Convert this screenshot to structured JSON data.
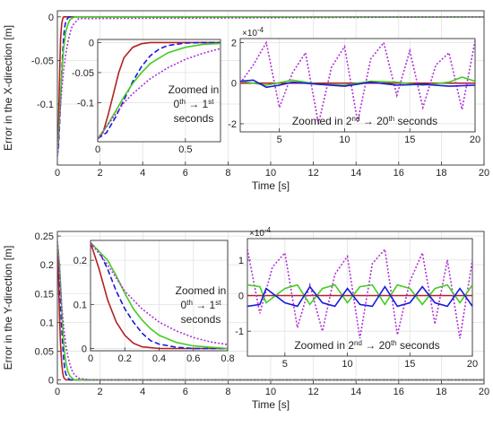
{
  "chart_data": [
    {
      "type": "line",
      "id": "x-main",
      "xlabel": "Time [s]",
      "ylabel": "Error in the X-direction [m]",
      "xlim": [
        0,
        20
      ],
      "ylim": [
        -0.17,
        0.007
      ],
      "xticks": [
        0,
        2,
        4,
        6,
        8,
        10,
        12,
        14,
        16,
        18,
        20
      ],
      "yticks": [
        0,
        -0.05,
        -0.1
      ],
      "ytick_labels": [
        "0",
        "-0.05",
        "-0.1"
      ],
      "grid": true,
      "series": [
        {
          "color": "#b22222",
          "dash": "solid",
          "x": [
            0,
            0.03,
            0.06,
            0.09,
            0.12,
            0.15,
            0.2,
            0.25,
            0.3,
            0.4,
            0.6,
            20
          ],
          "y": [
            -0.16,
            -0.15,
            -0.12,
            -0.085,
            -0.05,
            -0.025,
            -0.008,
            -0.002,
            0,
            0,
            0,
            0
          ]
        },
        {
          "color": "#1a1adb",
          "dash": "6,3",
          "x": [
            0,
            0.05,
            0.1,
            0.15,
            0.2,
            0.25,
            0.3,
            0.35,
            0.4,
            0.5,
            0.6,
            20
          ],
          "y": [
            -0.16,
            -0.15,
            -0.125,
            -0.095,
            -0.065,
            -0.04,
            -0.022,
            -0.011,
            -0.005,
            -0.001,
            0,
            0
          ]
        },
        {
          "color": "#44cc22",
          "dash": "solid",
          "x": [
            0,
            0.05,
            0.1,
            0.15,
            0.2,
            0.25,
            0.3,
            0.4,
            0.5,
            0.6,
            0.8,
            20
          ],
          "y": [
            -0.16,
            -0.14,
            -0.115,
            -0.09,
            -0.068,
            -0.05,
            -0.035,
            -0.017,
            -0.008,
            -0.003,
            0,
            0
          ]
        },
        {
          "color": "#b030d8",
          "dash": "2,2",
          "x": [
            0,
            0.05,
            0.1,
            0.15,
            0.2,
            0.3,
            0.4,
            0.5,
            0.6,
            0.7,
            1.0,
            20
          ],
          "y": [
            -0.16,
            -0.14,
            -0.12,
            -0.1,
            -0.085,
            -0.06,
            -0.042,
            -0.028,
            -0.018,
            -0.01,
            -0.002,
            0
          ]
        }
      ],
      "insets": [
        {
          "id": "x-inset1",
          "xlim": [
            0,
            0.7
          ],
          "ylim": [
            -0.165,
            0.005
          ],
          "xticks": [
            0,
            0.5
          ],
          "xtick_labels": [
            "0",
            "0.5"
          ],
          "yticks": [
            0,
            -0.05,
            -0.1
          ],
          "ytick_labels": [
            "0",
            "-0.05",
            "-0.1"
          ],
          "note_line1": "Zoomed in",
          "note_line2_base": "0",
          "note_line2_sup": "th",
          "note_line2_mid": " → 1",
          "note_line2_sup2": "st",
          "note_line3": "seconds"
        },
        {
          "id": "x-inset2",
          "xlim": [
            2,
            20
          ],
          "ylim": [
            -2.4,
            2.2
          ],
          "xticks": [
            5,
            10,
            15,
            20
          ],
          "yticks": [
            2,
            0,
            -2
          ],
          "exponent": "×10",
          "exponent_sup": "-4",
          "label_pre": "Zoomed in 2",
          "label_sup": "nd",
          "label_mid": " → 20",
          "label_sup2": "th",
          "label_post": " seconds",
          "series": [
            {
              "color": "#b22222",
              "dash": "solid",
              "x": [
                2,
                20
              ],
              "y": [
                0,
                0
              ]
            },
            {
              "color": "#b030d8",
              "dash": "2,2",
              "x": [
                2,
                3,
                4,
                5,
                6,
                7,
                8,
                9,
                10,
                11,
                12,
                13,
                14,
                15,
                16,
                17,
                18,
                19,
                20
              ],
              "y": [
                0,
                0.9,
                2.0,
                -1.2,
                0.5,
                1.5,
                -2.0,
                0.8,
                1.8,
                -1.9,
                1.2,
                2.0,
                -0.6,
                1.6,
                -1.2,
                0.9,
                1.5,
                -1.3,
                2.1
              ]
            },
            {
              "color": "#44cc22",
              "dash": "solid",
              "x": [
                2,
                4,
                6,
                8,
                10,
                12,
                14,
                16,
                18,
                19,
                20
              ],
              "y": [
                0.1,
                -0.1,
                0.15,
                -0.05,
                -0.1,
                0.1,
                0.05,
                -0.1,
                0.05,
                0.3,
                0.1
              ]
            },
            {
              "color": "#1a1adb",
              "dash": "solid",
              "x": [
                2,
                3,
                4,
                5,
                6,
                8,
                10,
                12,
                14,
                16,
                18,
                20
              ],
              "y": [
                0.1,
                0.15,
                -0.2,
                -0.1,
                0.05,
                -0.05,
                -0.15,
                0.05,
                -0.1,
                -0.05,
                -0.15,
                -0.1
              ]
            }
          ]
        }
      ]
    },
    {
      "type": "line",
      "id": "y-main",
      "xlabel": "Time [s]",
      "ylabel": "Error in the Y-direction [m]",
      "xlim": [
        0,
        20
      ],
      "ylim": [
        -0.007,
        0.258
      ],
      "xticks": [
        0,
        2,
        4,
        6,
        8,
        10,
        12,
        14,
        16,
        18,
        20
      ],
      "yticks": [
        0,
        0.05,
        0.1,
        0.15,
        0.2,
        0.25
      ],
      "grid": true,
      "series": [
        {
          "color": "#b22222",
          "dash": "solid",
          "x": [
            0,
            0.05,
            0.1,
            0.15,
            0.2,
            0.25,
            0.3,
            0.4,
            0.5,
            20
          ],
          "y": [
            0.24,
            0.18,
            0.11,
            0.06,
            0.03,
            0.012,
            0.004,
            0,
            0,
            0
          ]
        },
        {
          "color": "#1a1adb",
          "dash": "6,3",
          "x": [
            0,
            0.05,
            0.1,
            0.15,
            0.2,
            0.25,
            0.3,
            0.35,
            0.4,
            0.5,
            0.6,
            20
          ],
          "y": [
            0.24,
            0.22,
            0.18,
            0.13,
            0.09,
            0.06,
            0.035,
            0.018,
            0.01,
            0.003,
            0,
            0
          ]
        },
        {
          "color": "#44cc22",
          "dash": "solid",
          "x": [
            0,
            0.1,
            0.15,
            0.2,
            0.25,
            0.3,
            0.35,
            0.4,
            0.5,
            0.6,
            0.8,
            20
          ],
          "y": [
            0.24,
            0.2,
            0.165,
            0.125,
            0.09,
            0.065,
            0.045,
            0.03,
            0.014,
            0.006,
            0,
            0
          ]
        },
        {
          "color": "#b030d8",
          "dash": "2,2",
          "x": [
            0,
            0.1,
            0.2,
            0.3,
            0.4,
            0.5,
            0.6,
            0.7,
            0.8,
            1.0,
            1.5,
            20
          ],
          "y": [
            0.24,
            0.19,
            0.13,
            0.09,
            0.06,
            0.04,
            0.025,
            0.015,
            0.009,
            0.003,
            0,
            0
          ]
        }
      ],
      "insets": [
        {
          "id": "y-inset1",
          "xlim": [
            0,
            0.8
          ],
          "ylim": [
            -0.005,
            0.245
          ],
          "xticks": [
            0,
            0.2,
            0.4,
            0.6,
            0.8
          ],
          "xtick_labels": [
            "0",
            "0.2",
            "0.4",
            "0.6",
            "0.8"
          ],
          "yticks": [
            0,
            0.1,
            0.2
          ],
          "ytick_labels": [
            "0",
            "0.1",
            "0.2"
          ],
          "note_line1": "Zoomed in",
          "note_line2_base": "0",
          "note_line2_sup": "th",
          "note_line2_mid": " → 1",
          "note_line2_sup2": "st",
          "note_line3": "seconds"
        },
        {
          "id": "y-inset2",
          "xlim": [
            2,
            20
          ],
          "ylim": [
            -1.7,
            1.6
          ],
          "xticks": [
            5,
            10,
            15,
            20
          ],
          "yticks": [
            1,
            0,
            -1
          ],
          "exponent": "×10",
          "exponent_sup": "-4",
          "label_pre": "Zoomed in 2",
          "label_sup": "nd",
          "label_mid": " → 20",
          "label_sup2": "th",
          "label_post": " seconds",
          "series": [
            {
              "color": "#b22222",
              "dash": "solid",
              "x": [
                2,
                20
              ],
              "y": [
                0,
                0
              ]
            },
            {
              "color": "#b030d8",
              "dash": "2,2",
              "x": [
                2,
                3,
                4,
                5,
                6,
                7,
                8,
                9,
                10,
                11,
                12,
                13,
                14,
                15,
                16,
                17,
                18,
                19,
                20
              ],
              "y": [
                1.3,
                -0.5,
                0.8,
                1.2,
                -0.9,
                0.3,
                -1.0,
                0.6,
                1.1,
                -1.2,
                0.9,
                1.3,
                -1.1,
                0.4,
                1.2,
                -0.8,
                1.0,
                -1.2,
                1.0
              ]
            },
            {
              "color": "#44cc22",
              "dash": "solid",
              "x": [
                2,
                3,
                3.5,
                5,
                6,
                7,
                8,
                9,
                10,
                11,
                12,
                13,
                14,
                15,
                16,
                17,
                18,
                19,
                20
              ],
              "y": [
                0.3,
                0.25,
                -0.2,
                0.2,
                0.3,
                -0.25,
                0.2,
                0.3,
                -0.2,
                0.25,
                0.3,
                -0.25,
                0.3,
                0.2,
                -0.25,
                0.2,
                0.3,
                -0.2,
                0.3
              ]
            },
            {
              "color": "#1a1adb",
              "dash": "solid",
              "x": [
                2,
                3,
                3.5,
                5,
                6,
                7,
                8,
                9,
                10,
                11,
                12,
                13,
                14,
                15,
                16,
                17,
                18,
                19,
                20
              ],
              "y": [
                -0.3,
                -0.25,
                0.2,
                -0.2,
                -0.3,
                0.25,
                -0.2,
                -0.3,
                0.2,
                -0.25,
                -0.3,
                0.25,
                -0.3,
                -0.2,
                0.25,
                -0.2,
                -0.3,
                0.2,
                -0.3
              ]
            }
          ]
        }
      ]
    }
  ]
}
